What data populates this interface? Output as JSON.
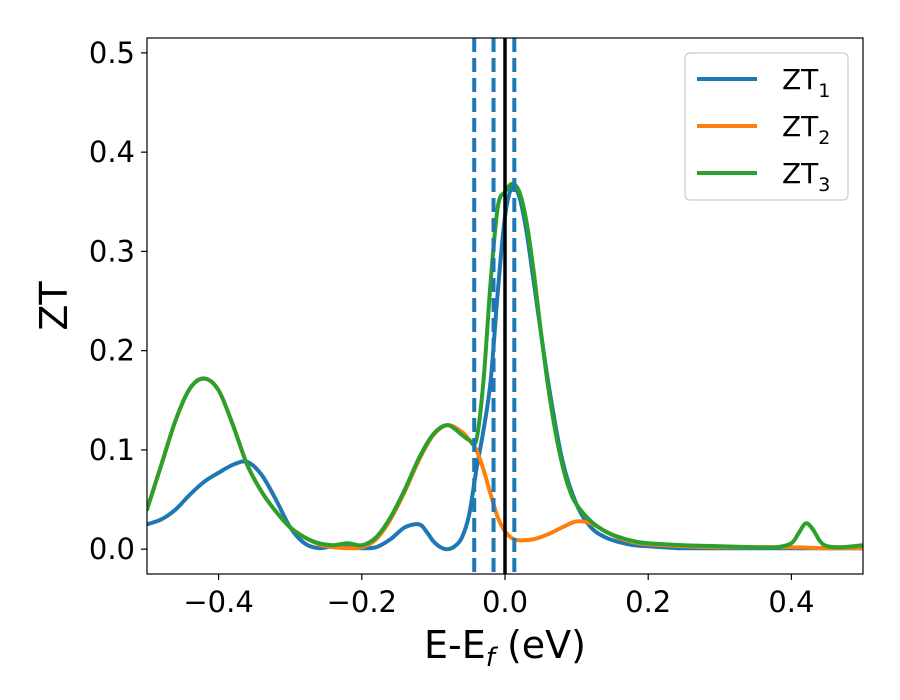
{
  "chart_data": {
    "type": "line",
    "title": "",
    "xlabel": {
      "main": "E-E",
      "sub": "f",
      "rest": " (eV)"
    },
    "ylabel": "ZT",
    "xlim": [
      -0.5,
      0.5
    ],
    "ylim": [
      -0.025,
      0.515
    ],
    "x_ticks": [
      -0.4,
      -0.2,
      0.0,
      0.2,
      0.4
    ],
    "x_tick_labels": [
      "−0.4",
      "−0.2",
      "0.0",
      "0.2",
      "0.4"
    ],
    "y_ticks": [
      0.0,
      0.1,
      0.2,
      0.3,
      0.4,
      0.5
    ],
    "y_tick_labels": [
      "0.0",
      "0.1",
      "0.2",
      "0.3",
      "0.4",
      "0.5"
    ],
    "grid": false,
    "legend_position": "top-right",
    "vertical_lines": [
      {
        "x": -0.043,
        "style": "dashed",
        "color": "#1f77b4"
      },
      {
        "x": -0.016,
        "style": "dashed",
        "color": "#1f77b4"
      },
      {
        "x": 0.0,
        "style": "solid",
        "color": "#000000"
      },
      {
        "x": 0.013,
        "style": "dashed",
        "color": "#1f77b4"
      }
    ],
    "series": [
      {
        "name": "ZT",
        "name_sub": "1",
        "color": "#1f77b4",
        "x": [
          -0.5,
          -0.48,
          -0.46,
          -0.44,
          -0.42,
          -0.4,
          -0.38,
          -0.36,
          -0.34,
          -0.32,
          -0.3,
          -0.28,
          -0.26,
          -0.24,
          -0.22,
          -0.2,
          -0.18,
          -0.16,
          -0.14,
          -0.12,
          -0.11,
          -0.1,
          -0.09,
          -0.08,
          -0.07,
          -0.06,
          -0.05,
          -0.04,
          -0.03,
          -0.02,
          -0.01,
          0.0,
          0.01,
          0.02,
          0.03,
          0.04,
          0.06,
          0.08,
          0.1,
          0.12,
          0.14,
          0.16,
          0.18,
          0.2,
          0.22,
          0.24,
          0.26,
          0.3,
          0.35,
          0.4,
          0.45,
          0.5
        ],
        "y": [
          0.025,
          0.03,
          0.04,
          0.055,
          0.068,
          0.077,
          0.085,
          0.088,
          0.075,
          0.05,
          0.022,
          0.006,
          0.001,
          0.003,
          0.002,
          0.001,
          0.002,
          0.01,
          0.022,
          0.025,
          0.018,
          0.008,
          0.002,
          0.0,
          0.003,
          0.012,
          0.035,
          0.08,
          0.12,
          0.17,
          0.26,
          0.335,
          0.365,
          0.355,
          0.32,
          0.27,
          0.17,
          0.09,
          0.045,
          0.022,
          0.012,
          0.007,
          0.004,
          0.003,
          0.002,
          0.001,
          0.001,
          0.001,
          0.001,
          0.001,
          0.001,
          0.001
        ]
      },
      {
        "name": "ZT",
        "name_sub": "2",
        "color": "#ff7f0e",
        "x": [
          -0.5,
          -0.48,
          -0.46,
          -0.44,
          -0.42,
          -0.4,
          -0.38,
          -0.36,
          -0.34,
          -0.32,
          -0.3,
          -0.28,
          -0.26,
          -0.24,
          -0.22,
          -0.2,
          -0.18,
          -0.16,
          -0.14,
          -0.12,
          -0.1,
          -0.08,
          -0.06,
          -0.05,
          -0.04,
          -0.03,
          -0.02,
          -0.01,
          0.0,
          0.01,
          0.02,
          0.04,
          0.06,
          0.08,
          0.1,
          0.12,
          0.14,
          0.16,
          0.18,
          0.2,
          0.25,
          0.3,
          0.35,
          0.4,
          0.45,
          0.5
        ],
        "y": [
          0.04,
          0.085,
          0.13,
          0.162,
          0.172,
          0.16,
          0.125,
          0.085,
          0.058,
          0.038,
          0.022,
          0.012,
          0.005,
          0.002,
          0.001,
          0.002,
          0.01,
          0.03,
          0.058,
          0.09,
          0.115,
          0.125,
          0.118,
          0.11,
          0.1,
          0.08,
          0.055,
          0.032,
          0.018,
          0.011,
          0.009,
          0.01,
          0.015,
          0.022,
          0.028,
          0.026,
          0.018,
          0.011,
          0.007,
          0.005,
          0.003,
          0.002,
          0.002,
          0.002,
          0.001,
          0.001
        ]
      },
      {
        "name": "ZT",
        "name_sub": "3",
        "color": "#2ca02c",
        "x": [
          -0.5,
          -0.48,
          -0.46,
          -0.44,
          -0.42,
          -0.4,
          -0.38,
          -0.36,
          -0.34,
          -0.32,
          -0.3,
          -0.28,
          -0.26,
          -0.24,
          -0.22,
          -0.2,
          -0.18,
          -0.16,
          -0.14,
          -0.12,
          -0.1,
          -0.08,
          -0.06,
          -0.05,
          -0.04,
          -0.03,
          -0.02,
          -0.01,
          0.0,
          0.01,
          0.02,
          0.03,
          0.04,
          0.05,
          0.06,
          0.07,
          0.08,
          0.09,
          0.1,
          0.12,
          0.14,
          0.16,
          0.18,
          0.2,
          0.25,
          0.3,
          0.35,
          0.38,
          0.4,
          0.41,
          0.42,
          0.43,
          0.44,
          0.45,
          0.47,
          0.5
        ],
        "y": [
          0.04,
          0.085,
          0.13,
          0.162,
          0.172,
          0.16,
          0.125,
          0.085,
          0.058,
          0.038,
          0.022,
          0.012,
          0.006,
          0.004,
          0.006,
          0.004,
          0.012,
          0.032,
          0.06,
          0.092,
          0.116,
          0.125,
          0.115,
          0.11,
          0.11,
          0.17,
          0.27,
          0.345,
          0.36,
          0.368,
          0.36,
          0.33,
          0.28,
          0.22,
          0.165,
          0.12,
          0.085,
          0.06,
          0.045,
          0.028,
          0.018,
          0.012,
          0.008,
          0.006,
          0.004,
          0.003,
          0.002,
          0.002,
          0.006,
          0.016,
          0.026,
          0.02,
          0.008,
          0.003,
          0.002,
          0.004
        ]
      }
    ]
  }
}
